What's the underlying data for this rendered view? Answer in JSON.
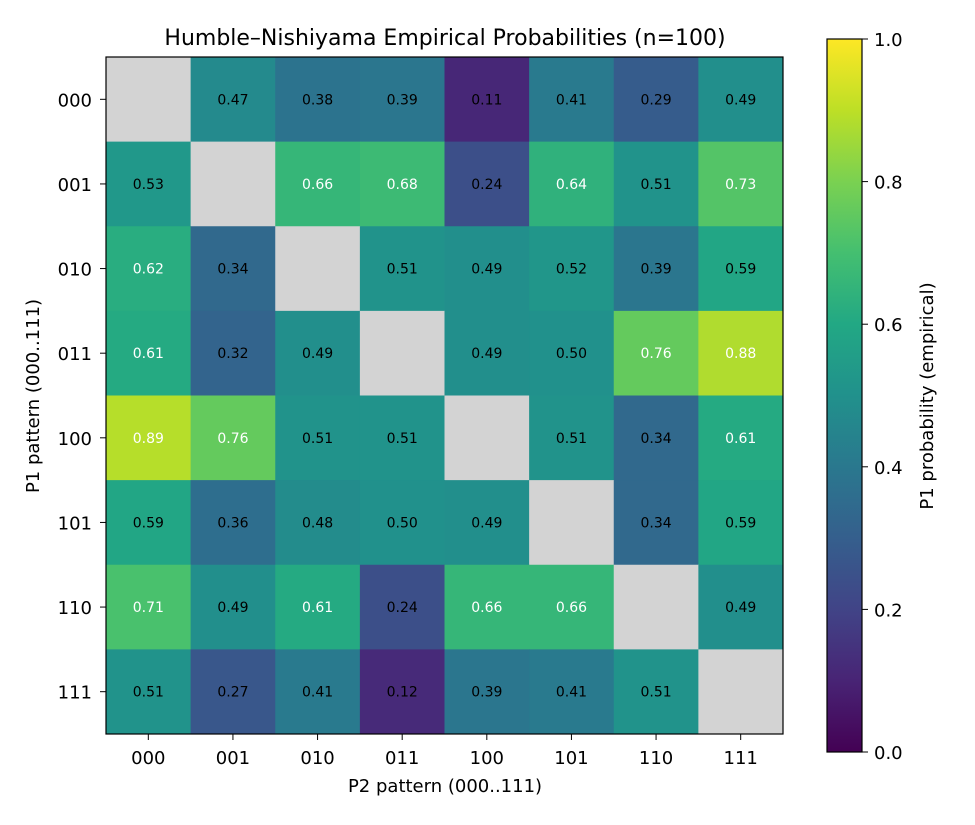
{
  "chart_data": {
    "type": "heatmap",
    "title": "Humble–Nishiyama Empirical Probabilities (n=100)",
    "xlabel": "P2 pattern (000..111)",
    "ylabel": "P1 pattern (000..111)",
    "x_categories": [
      "000",
      "001",
      "010",
      "011",
      "100",
      "101",
      "110",
      "111"
    ],
    "y_categories": [
      "000",
      "001",
      "010",
      "011",
      "100",
      "101",
      "110",
      "111"
    ],
    "values": [
      [
        null,
        0.47,
        0.38,
        0.39,
        0.11,
        0.41,
        0.29,
        0.49
      ],
      [
        0.53,
        null,
        0.66,
        0.68,
        0.24,
        0.64,
        0.51,
        0.73
      ],
      [
        0.62,
        0.34,
        null,
        0.51,
        0.49,
        0.52,
        0.39,
        0.59
      ],
      [
        0.61,
        0.32,
        0.49,
        null,
        0.49,
        0.5,
        0.76,
        0.88
      ],
      [
        0.89,
        0.76,
        0.51,
        0.51,
        null,
        0.51,
        0.34,
        0.61
      ],
      [
        0.59,
        0.36,
        0.48,
        0.5,
        0.49,
        null,
        0.34,
        0.59
      ],
      [
        0.71,
        0.49,
        0.61,
        0.24,
        0.66,
        0.66,
        null,
        0.49
      ],
      [
        0.51,
        0.27,
        0.41,
        0.12,
        0.39,
        0.41,
        0.51,
        null
      ]
    ],
    "value_format": "2 decimals",
    "missing_color": "#d3d3d3",
    "colormap": "viridis",
    "vmin": 0.0,
    "vmax": 1.0,
    "colorbar": {
      "label": "P1 probability (empirical)",
      "ticks": [
        0.0,
        0.2,
        0.4,
        0.6,
        0.8,
        1.0
      ],
      "tick_labels": [
        "0.0",
        "0.2",
        "0.4",
        "0.6",
        "0.8",
        "1.0"
      ],
      "placement": "right"
    },
    "grid": false
  }
}
